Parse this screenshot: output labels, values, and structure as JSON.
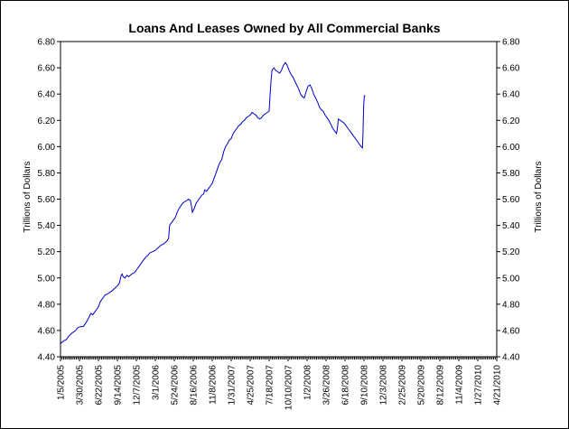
{
  "chart_data": {
    "type": "line",
    "title": "Loans And Leases Owned by All Commercial Banks",
    "ylabel": "Trillions of Dollars",
    "ylabel_right": "Trillions of Dollars",
    "xlabel": "",
    "ylim": [
      4.4,
      6.8
    ],
    "y_ticks": [
      "4.40",
      "4.60",
      "4.80",
      "5.00",
      "5.20",
      "5.40",
      "5.60",
      "5.80",
      "6.00",
      "6.20",
      "6.40",
      "6.60",
      "6.80"
    ],
    "x_ticks": [
      "1/5/2005",
      "3/30/2005",
      "6/22/2005",
      "9/14/2005",
      "12/7/2005",
      "3/1/2006",
      "5/24/2006",
      "8/16/2006",
      "11/8/2006",
      "1/31/2007",
      "4/25/2007",
      "7/18/2007",
      "10/10/2007",
      "1/2/2008",
      "3/26/2008",
      "6/18/2008",
      "9/10/2008",
      "12/3/2008",
      "2/25/2009",
      "5/20/2009",
      "8/12/2009",
      "11/4/2009",
      "1/27/2010",
      "4/21/2010"
    ],
    "grid": false,
    "line_color": "#0000cc",
    "series": [
      {
        "values": [
          [
            0,
            4.5
          ],
          [
            0.15,
            4.52
          ],
          [
            0.3,
            4.53
          ],
          [
            0.45,
            4.56
          ],
          [
            0.6,
            4.58
          ],
          [
            0.8,
            4.6
          ],
          [
            0.9,
            4.62
          ],
          [
            1.05,
            4.63
          ],
          [
            1.2,
            4.63
          ],
          [
            1.35,
            4.66
          ],
          [
            1.5,
            4.7
          ],
          [
            1.6,
            4.73
          ],
          [
            1.7,
            4.72
          ],
          [
            1.8,
            4.74
          ],
          [
            1.9,
            4.76
          ],
          [
            2.0,
            4.78
          ],
          [
            2.1,
            4.82
          ],
          [
            2.2,
            4.84
          ],
          [
            2.35,
            4.87
          ],
          [
            2.5,
            4.88
          ],
          [
            2.7,
            4.9
          ],
          [
            2.85,
            4.92
          ],
          [
            3.0,
            4.94
          ],
          [
            3.1,
            4.96
          ],
          [
            3.2,
            5.02
          ],
          [
            3.25,
            5.03
          ],
          [
            3.3,
            5.01
          ],
          [
            3.4,
            5.0
          ],
          [
            3.5,
            5.02
          ],
          [
            3.6,
            5.01
          ],
          [
            3.75,
            5.03
          ],
          [
            3.9,
            5.04
          ],
          [
            4.0,
            5.06
          ],
          [
            4.1,
            5.08
          ],
          [
            4.2,
            5.1
          ],
          [
            4.35,
            5.13
          ],
          [
            4.5,
            5.16
          ],
          [
            4.6,
            5.17
          ],
          [
            4.7,
            5.19
          ],
          [
            4.85,
            5.2
          ],
          [
            5.0,
            5.21
          ],
          [
            5.15,
            5.23
          ],
          [
            5.3,
            5.25
          ],
          [
            5.45,
            5.26
          ],
          [
            5.6,
            5.28
          ],
          [
            5.7,
            5.3
          ],
          [
            5.75,
            5.4
          ],
          [
            5.85,
            5.42
          ],
          [
            5.95,
            5.44
          ],
          [
            6.05,
            5.46
          ],
          [
            6.15,
            5.5
          ],
          [
            6.25,
            5.53
          ],
          [
            6.35,
            5.55
          ],
          [
            6.45,
            5.57
          ],
          [
            6.55,
            5.58
          ],
          [
            6.65,
            5.59
          ],
          [
            6.75,
            5.6
          ],
          [
            6.85,
            5.59
          ],
          [
            6.9,
            5.55
          ],
          [
            6.95,
            5.5
          ],
          [
            7.05,
            5.53
          ],
          [
            7.15,
            5.57
          ],
          [
            7.25,
            5.59
          ],
          [
            7.35,
            5.61
          ],
          [
            7.45,
            5.63
          ],
          [
            7.55,
            5.64
          ],
          [
            7.6,
            5.67
          ],
          [
            7.7,
            5.66
          ],
          [
            7.8,
            5.68
          ],
          [
            7.9,
            5.7
          ],
          [
            8.0,
            5.72
          ],
          [
            8.1,
            5.76
          ],
          [
            8.2,
            5.8
          ],
          [
            8.3,
            5.84
          ],
          [
            8.4,
            5.88
          ],
          [
            8.5,
            5.9
          ],
          [
            8.6,
            5.96
          ],
          [
            8.7,
            6.0
          ],
          [
            8.8,
            6.02
          ],
          [
            8.9,
            6.05
          ],
          [
            9.0,
            6.06
          ],
          [
            9.1,
            6.1
          ],
          [
            9.2,
            6.12
          ],
          [
            9.3,
            6.14
          ],
          [
            9.4,
            6.16
          ],
          [
            9.5,
            6.17
          ],
          [
            9.6,
            6.19
          ],
          [
            9.7,
            6.2
          ],
          [
            9.8,
            6.22
          ],
          [
            9.9,
            6.23
          ],
          [
            10.0,
            6.24
          ],
          [
            10.1,
            6.26
          ],
          [
            10.2,
            6.25
          ],
          [
            10.3,
            6.24
          ],
          [
            10.4,
            6.22
          ],
          [
            10.5,
            6.21
          ],
          [
            10.6,
            6.22
          ],
          [
            10.7,
            6.24
          ],
          [
            10.8,
            6.25
          ],
          [
            10.9,
            6.26
          ],
          [
            11.0,
            6.27
          ],
          [
            11.05,
            6.4
          ],
          [
            11.1,
            6.5
          ],
          [
            11.15,
            6.58
          ],
          [
            11.25,
            6.6
          ],
          [
            11.35,
            6.58
          ],
          [
            11.45,
            6.57
          ],
          [
            11.55,
            6.56
          ],
          [
            11.65,
            6.58
          ],
          [
            11.75,
            6.62
          ],
          [
            11.85,
            6.64
          ],
          [
            11.95,
            6.62
          ],
          [
            12.05,
            6.58
          ],
          [
            12.15,
            6.55
          ],
          [
            12.25,
            6.53
          ],
          [
            12.35,
            6.5
          ],
          [
            12.45,
            6.47
          ],
          [
            12.55,
            6.44
          ],
          [
            12.65,
            6.4
          ],
          [
            12.75,
            6.38
          ],
          [
            12.85,
            6.37
          ],
          [
            12.95,
            6.42
          ],
          [
            13.05,
            6.46
          ],
          [
            13.15,
            6.47
          ],
          [
            13.25,
            6.44
          ],
          [
            13.35,
            6.4
          ],
          [
            13.45,
            6.37
          ],
          [
            13.55,
            6.34
          ],
          [
            13.65,
            6.3
          ],
          [
            13.75,
            6.28
          ],
          [
            13.85,
            6.27
          ],
          [
            13.95,
            6.24
          ],
          [
            14.05,
            6.22
          ],
          [
            14.15,
            6.2
          ],
          [
            14.25,
            6.17
          ],
          [
            14.35,
            6.14
          ],
          [
            14.45,
            6.12
          ],
          [
            14.55,
            6.1
          ],
          [
            14.6,
            6.14
          ],
          [
            14.65,
            6.21
          ],
          [
            14.75,
            6.2
          ],
          [
            14.85,
            6.19
          ],
          [
            14.95,
            6.18
          ],
          [
            15.05,
            6.16
          ],
          [
            15.15,
            6.14
          ],
          [
            15.25,
            6.12
          ],
          [
            15.35,
            6.1
          ],
          [
            15.45,
            6.08
          ],
          [
            15.55,
            6.06
          ],
          [
            15.65,
            6.04
          ],
          [
            15.75,
            6.02
          ],
          [
            15.85,
            6.0
          ],
          [
            15.92,
            5.99
          ],
          [
            15.95,
            6.1
          ],
          [
            15.98,
            6.3
          ],
          [
            16.02,
            6.39
          ],
          [
            16.05,
            6.38
          ]
        ]
      }
    ]
  }
}
